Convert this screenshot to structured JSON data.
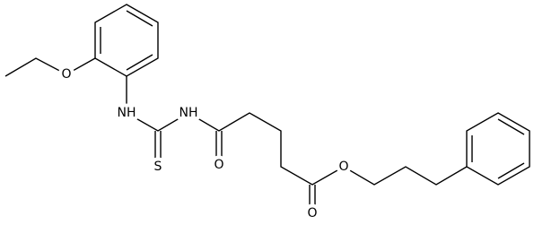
{
  "atoms": [
    {
      "label": "O"
    },
    {
      "label": "NH"
    },
    {
      "label": "S"
    },
    {
      "label": "NH"
    },
    {
      "label": "O"
    },
    {
      "label": "O"
    },
    {
      "label": "O"
    }
  ]
}
